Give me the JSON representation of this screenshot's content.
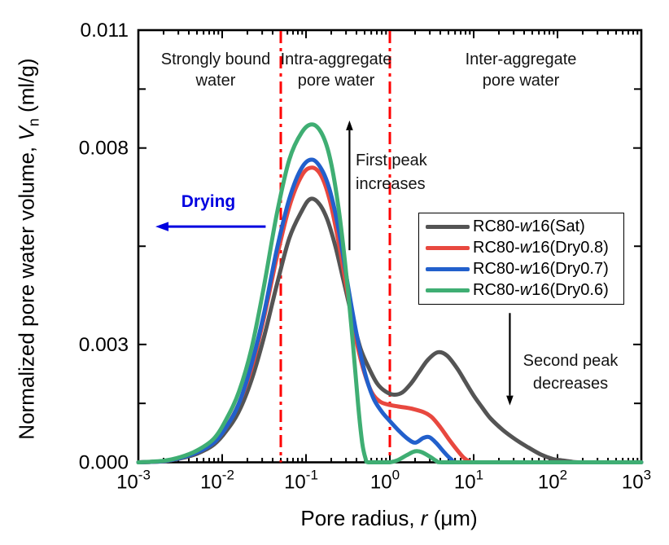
{
  "figure": {
    "background": "#ffffff"
  },
  "axes": {
    "x_label": {
      "prefix": "Pore radius, ",
      "italic": "r",
      "suffix": " (μm)"
    },
    "y_label": {
      "prefix": "Normalized pore water volume, ",
      "italic": "V",
      "sub": "n",
      "suffix": " (ml/g)"
    }
  },
  "annotations": {
    "region_labels": [
      {
        "line1": "Strongly bound",
        "line2": "water"
      },
      {
        "line1": "Intra-aggregate",
        "line2": "pore water"
      },
      {
        "line1": "Inter-aggregate",
        "line2": "pore water"
      }
    ],
    "drying": "Drying",
    "first_peak": {
      "line1": "First peak",
      "line2": "increases"
    },
    "second_peak": {
      "line1": "Second peak",
      "line2": "decreases"
    }
  },
  "legend": {
    "items": [
      {
        "prefix": "RC80-",
        "italic": "w",
        "suffix": "16(Sat)"
      },
      {
        "prefix": "RC80-",
        "italic": "w",
        "suffix": "16(Dry0.8)"
      },
      {
        "prefix": "RC80-",
        "italic": "w",
        "suffix": "16(Dry0.7)"
      },
      {
        "prefix": "RC80-",
        "italic": "w",
        "suffix": "16(Dry0.6)"
      }
    ]
  },
  "chart_data": {
    "type": "line",
    "title": "",
    "xlabel": "Pore radius, r (μm)",
    "ylabel": "Normalized pore water volume, Vn (ml/g)",
    "x_axis": {
      "scale": "log",
      "min": 0.001,
      "max": 1000,
      "unit": "μm",
      "tick_exponents": [
        -3,
        -2,
        -1,
        0,
        1,
        2,
        3
      ]
    },
    "y_axis": {
      "min": 0,
      "max": 0.011,
      "ticks": [
        {
          "v": 0,
          "label": "0.000"
        },
        {
          "v": 0.0015
        },
        {
          "v": 0.003,
          "label": "0.003"
        },
        {
          "v": 0.0055
        },
        {
          "v": 0.008,
          "label": "0.008"
        },
        {
          "v": 0.0095
        },
        {
          "v": 0.011,
          "label": "0.011"
        }
      ]
    },
    "x_is_log10": true,
    "series": [
      {
        "name": "RC80-w16(Sat)",
        "color": "#545454",
        "points": [
          [
            -3,
            0
          ],
          [
            -2.7,
            3e-05
          ],
          [
            -2.5,
            0.0001
          ],
          [
            -2.3,
            0.00022
          ],
          [
            -2.1,
            0.00045
          ],
          [
            -1.95,
            0.0008
          ],
          [
            -1.8,
            0.0013
          ],
          [
            -1.65,
            0.0021
          ],
          [
            -1.5,
            0.0032
          ],
          [
            -1.35,
            0.0045
          ],
          [
            -1.2,
            0.0057
          ],
          [
            -1.05,
            0.0064
          ],
          [
            -0.95,
            0.0067
          ],
          [
            -0.85,
            0.0066
          ],
          [
            -0.75,
            0.0062
          ],
          [
            -0.65,
            0.0055
          ],
          [
            -0.55,
            0.0046
          ],
          [
            -0.45,
            0.0037
          ],
          [
            -0.35,
            0.0029
          ],
          [
            -0.25,
            0.0024
          ],
          [
            -0.15,
            0.002
          ],
          [
            -0.05,
            0.0018
          ],
          [
            0.05,
            0.00172
          ],
          [
            0.15,
            0.00178
          ],
          [
            0.25,
            0.002
          ],
          [
            0.35,
            0.0023
          ],
          [
            0.45,
            0.0026
          ],
          [
            0.57,
            0.0028
          ],
          [
            0.68,
            0.00272
          ],
          [
            0.8,
            0.0024
          ],
          [
            0.9,
            0.00205
          ],
          [
            1,
            0.0017
          ],
          [
            1.1,
            0.0014
          ],
          [
            1.2,
            0.00112
          ],
          [
            1.35,
            0.00082
          ],
          [
            1.5,
            0.00058
          ],
          [
            1.65,
            0.00038
          ],
          [
            1.8,
            0.0002
          ],
          [
            1.95,
            8e-05
          ],
          [
            2.05,
            5e-05
          ],
          [
            2.15,
            2e-05
          ],
          [
            2.25,
            0
          ],
          [
            2.6,
            0
          ],
          [
            3,
            0
          ]
        ]
      },
      {
        "name": "RC80-w16(Dry0.8)",
        "color": "#e8483f",
        "points": [
          [
            -3,
            0
          ],
          [
            -2.7,
            3e-05
          ],
          [
            -2.5,
            0.00011
          ],
          [
            -2.3,
            0.00025
          ],
          [
            -2.1,
            0.0005
          ],
          [
            -1.95,
            0.0009
          ],
          [
            -1.8,
            0.0015
          ],
          [
            -1.65,
            0.0024
          ],
          [
            -1.5,
            0.0037
          ],
          [
            -1.35,
            0.0052
          ],
          [
            -1.2,
            0.0065
          ],
          [
            -1.05,
            0.0073
          ],
          [
            -0.93,
            0.0075
          ],
          [
            -0.82,
            0.0073
          ],
          [
            -0.72,
            0.0067
          ],
          [
            -0.62,
            0.0057
          ],
          [
            -0.52,
            0.0045
          ],
          [
            -0.42,
            0.0033
          ],
          [
            -0.32,
            0.0024
          ],
          [
            -0.22,
            0.0018
          ],
          [
            -0.12,
            0.00155
          ],
          [
            -0.02,
            0.00147
          ],
          [
            0.1,
            0.00142
          ],
          [
            0.25,
            0.00137
          ],
          [
            0.4,
            0.00128
          ],
          [
            0.5,
            0.00115
          ],
          [
            0.6,
            0.0009
          ],
          [
            0.7,
            0.0006
          ],
          [
            0.8,
            0.00032
          ],
          [
            0.88,
            0.00012
          ],
          [
            0.95,
            2e-05
          ],
          [
            1,
            0
          ],
          [
            1.5,
            0
          ],
          [
            3,
            0
          ]
        ]
      },
      {
        "name": "RC80-w16(Dry0.7)",
        "color": "#2260cc",
        "points": [
          [
            -3,
            0
          ],
          [
            -2.7,
            3e-05
          ],
          [
            -2.5,
            0.00011
          ],
          [
            -2.3,
            0.00025
          ],
          [
            -2.1,
            0.0005
          ],
          [
            -1.95,
            0.0009
          ],
          [
            -1.8,
            0.0015
          ],
          [
            -1.65,
            0.0025
          ],
          [
            -1.5,
            0.0038
          ],
          [
            -1.35,
            0.0054
          ],
          [
            -1.2,
            0.0067
          ],
          [
            -1.05,
            0.0075
          ],
          [
            -0.92,
            0.0077
          ],
          [
            -0.8,
            0.0074
          ],
          [
            -0.7,
            0.0068
          ],
          [
            -0.6,
            0.0058
          ],
          [
            -0.5,
            0.0045
          ],
          [
            -0.4,
            0.0033
          ],
          [
            -0.3,
            0.0023
          ],
          [
            -0.2,
            0.00165
          ],
          [
            -0.1,
            0.0013
          ],
          [
            0,
            0.00105
          ],
          [
            0.1,
            0.00082
          ],
          [
            0.2,
            0.00062
          ],
          [
            0.3,
            0.0005
          ],
          [
            0.4,
            0.00062
          ],
          [
            0.47,
            0.00064
          ],
          [
            0.55,
            0.0005
          ],
          [
            0.65,
            0.00025
          ],
          [
            0.73,
            8e-05
          ],
          [
            0.8,
            0
          ],
          [
            1.2,
            0
          ],
          [
            3,
            0
          ]
        ]
      },
      {
        "name": "RC80-w16(Dry0.6)",
        "color": "#3fae73",
        "points": [
          [
            -3,
            0
          ],
          [
            -2.7,
            4e-05
          ],
          [
            -2.5,
            0.00013
          ],
          [
            -2.3,
            0.0003
          ],
          [
            -2.1,
            0.0006
          ],
          [
            -1.95,
            0.0011
          ],
          [
            -1.8,
            0.0018
          ],
          [
            -1.65,
            0.0029
          ],
          [
            -1.5,
            0.0045
          ],
          [
            -1.35,
            0.0063
          ],
          [
            -1.2,
            0.0077
          ],
          [
            -1.05,
            0.0084
          ],
          [
            -0.93,
            0.0086
          ],
          [
            -0.82,
            0.0084
          ],
          [
            -0.72,
            0.0078
          ],
          [
            -0.62,
            0.0066
          ],
          [
            -0.52,
            0.0048
          ],
          [
            -0.44,
            0.003
          ],
          [
            -0.38,
            0.0015
          ],
          [
            -0.33,
            0.0005
          ],
          [
            -0.29,
            0.0001
          ],
          [
            -0.26,
            0
          ],
          [
            -0.1,
            0
          ],
          [
            0,
            0
          ],
          [
            0.1,
            6e-05
          ],
          [
            0.2,
            0.00018
          ],
          [
            0.3,
            0.00028
          ],
          [
            0.38,
            0.00026
          ],
          [
            0.48,
            0.00014
          ],
          [
            0.56,
            3e-05
          ],
          [
            0.62,
            0
          ],
          [
            1,
            0
          ],
          [
            3,
            0
          ]
        ]
      }
    ],
    "vlines": [
      {
        "r": 0.05,
        "color": "#ff0000",
        "style": "dash-dot"
      },
      {
        "r": 1.0,
        "color": "#ff0000",
        "style": "dash-dot"
      }
    ],
    "arrows": [
      {
        "name": "drying-arrow",
        "color": "#0000e0",
        "from": {
          "r": 0.033,
          "v": 0.006
        },
        "to": {
          "r": 0.0016,
          "v": 0.006
        },
        "head": 16
      },
      {
        "name": "first-peak-arrow",
        "color": "#000000",
        "from": {
          "r": 0.33,
          "v": 0.0054
        },
        "to": {
          "r": 0.33,
          "v": 0.0087
        },
        "head": 12
      },
      {
        "name": "second-peak-arrow",
        "color": "#000000",
        "from": {
          "r": 27,
          "v": 0.0038
        },
        "to": {
          "r": 27,
          "v": 0.00145
        },
        "head": 12
      }
    ],
    "legend_position": "center-right",
    "grid": false
  }
}
